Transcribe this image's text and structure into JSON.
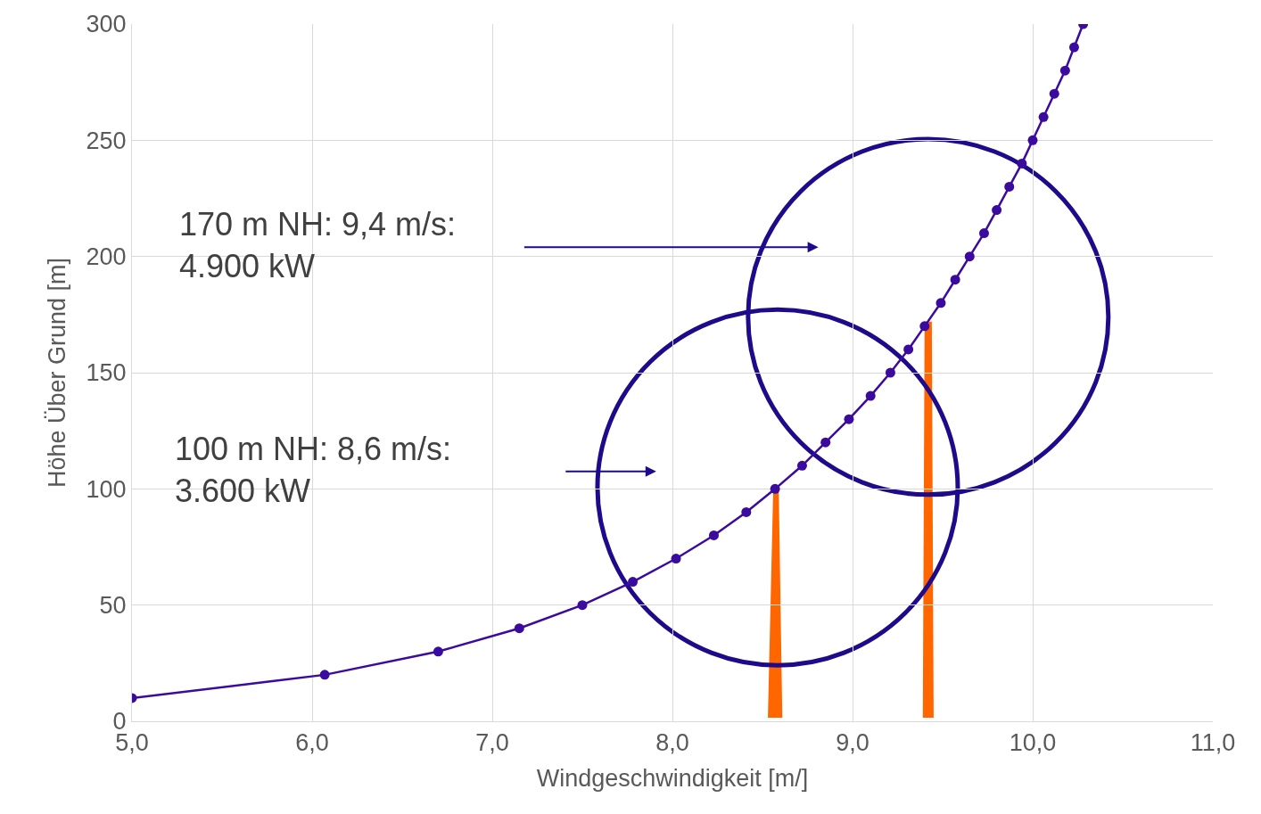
{
  "chart_data": {
    "type": "line",
    "xlabel": "Windgeschwindigkeit [m/]",
    "ylabel": "Höhe Über Grund [m]",
    "x": [
      5.0,
      6.07,
      6.7,
      7.15,
      7.5,
      7.78,
      8.02,
      8.23,
      8.41,
      8.57,
      8.72,
      8.85,
      8.98,
      9.1,
      9.21,
      9.31,
      9.4,
      9.49,
      9.57,
      9.65,
      9.73,
      9.8,
      9.87,
      9.94,
      10.0,
      10.06,
      10.12,
      10.18,
      10.23,
      10.28
    ],
    "series": [
      {
        "color": "#3b0a9e",
        "values": [
          10,
          20,
          30,
          40,
          50,
          60,
          70,
          80,
          90,
          100,
          110,
          120,
          130,
          140,
          150,
          160,
          170,
          180,
          190,
          200,
          210,
          220,
          230,
          240,
          250,
          260,
          270,
          280,
          290,
          300
        ]
      }
    ],
    "xlim": [
      5,
      11
    ],
    "xticks": [
      {
        "value": 5,
        "label": "5,0"
      },
      {
        "value": 6,
        "label": "6,0"
      },
      {
        "value": 7,
        "label": "7,0"
      },
      {
        "value": 8,
        "label": "8,0"
      },
      {
        "value": 9,
        "label": "9,0"
      },
      {
        "value": 10,
        "label": "10,0"
      },
      {
        "value": 11,
        "label": "11,0"
      }
    ],
    "ylim": [
      0,
      300
    ],
    "yticks": [
      0,
      50,
      100,
      150,
      200,
      250,
      300
    ],
    "grid": true,
    "marker": "circle",
    "line_style": "solid",
    "annotations": [
      "170 m NH: 9,4 m/s:\n4.900 kW",
      "100 m NH: 8,6 m/s:\n3.600 kW"
    ]
  }
}
